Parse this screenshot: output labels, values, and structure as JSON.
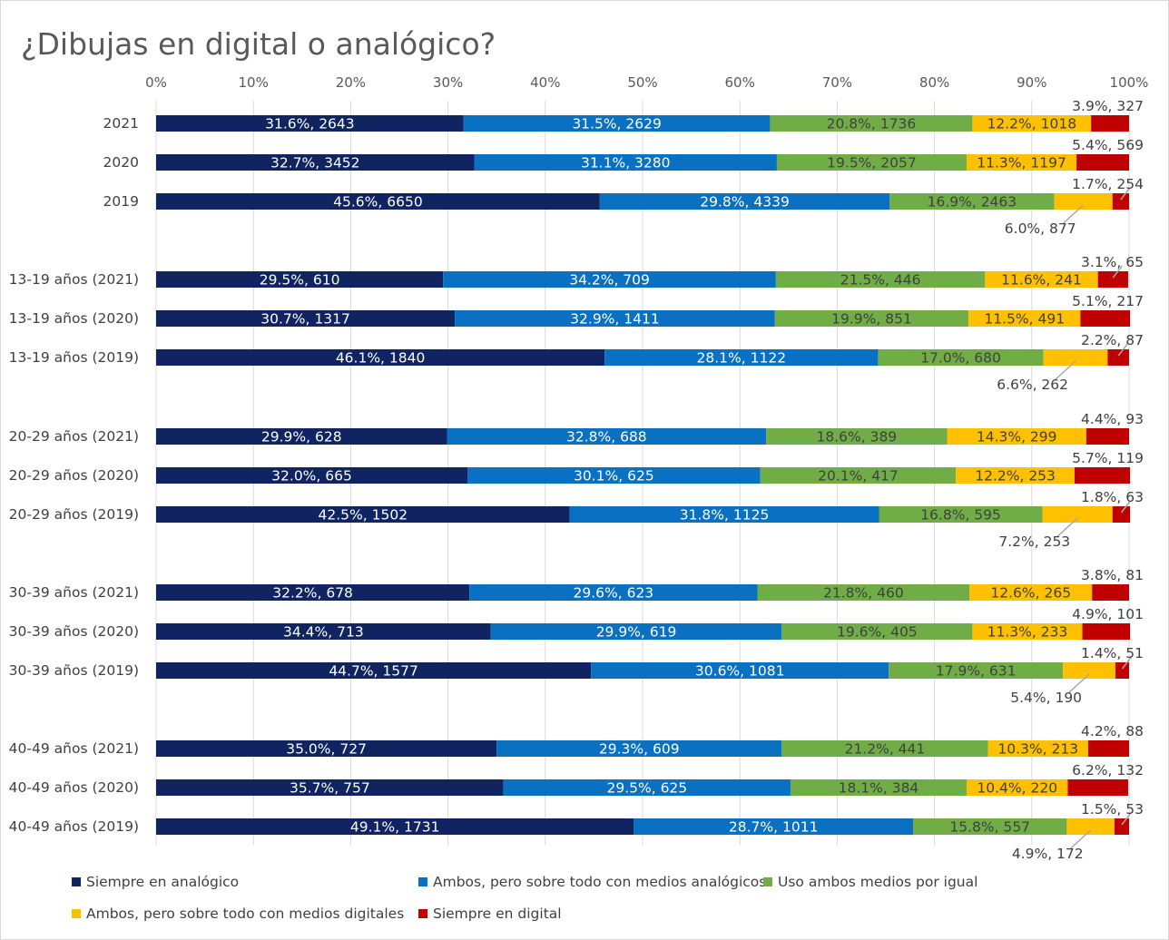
{
  "colors": {
    "Siempre en analógico": "#0f2461",
    "Ambos, pero sobre todo con medios analógicos": "#0a70c2",
    "Uso ambos medios por igual": "#71ad47",
    "Ambos, pero sobre todo con medios digitales": "#ffc000",
    "Siempre en digital": "#c00000"
  },
  "chart_data": {
    "type": "bar",
    "orientation": "horizontal",
    "stacked": "percent",
    "title": "¿Dibujas en digital o analógico?",
    "x_ticks": [
      "0%",
      "10%",
      "20%",
      "30%",
      "40%",
      "50%",
      "60%",
      "70%",
      "80%",
      "90%",
      "100%"
    ],
    "xlim": [
      0,
      100
    ],
    "grid": true,
    "legend_position": "bottom",
    "categories": [
      "2021",
      "2020",
      "2019",
      "13-19 años (2021)",
      "13-19 años (2020)",
      "13-19 años (2019)",
      "20-29 años (2021)",
      "20-29 años (2020)",
      "20-29 años (2019)",
      "30-39 años (2021)",
      "30-39 años (2020)",
      "30-39 años (2019)",
      "40-49 años (2021)",
      "40-49 años (2020)",
      "40-49 años (2019)"
    ],
    "series": [
      {
        "name": "Siempre en analógico",
        "values": [
          31.6,
          32.7,
          45.6,
          29.5,
          30.7,
          46.1,
          29.9,
          32.0,
          42.5,
          32.2,
          34.4,
          44.7,
          35.0,
          35.7,
          49.1
        ],
        "labels": [
          "31.6%, 2643",
          "32.7%, 3452",
          "45.6%, 6650",
          "29.5%, 610",
          "30.7%, 1317",
          "46.1%, 1840",
          "29.9%, 628",
          "32.0%, 665",
          "42.5%, 1502",
          "32.2%, 678",
          "34.4%, 713",
          "44.7%, 1577",
          "35.0%, 727",
          "35.7%, 757",
          "49.1%, 1731"
        ]
      },
      {
        "name": "Ambos, pero sobre todo con medios analógicos",
        "values": [
          31.5,
          31.1,
          29.8,
          34.2,
          32.9,
          28.1,
          32.8,
          30.1,
          31.8,
          29.6,
          29.9,
          30.6,
          29.3,
          29.5,
          28.7
        ],
        "labels": [
          "31.5%, 2629",
          "31.1%, 3280",
          "29.8%, 4339",
          "34.2%, 709",
          "32.9%, 1411",
          "28.1%, 1122",
          "32.8%, 688",
          "30.1%, 625",
          "31.8%, 1125",
          "29.6%, 623",
          "29.9%, 619",
          "30.6%, 1081",
          "29.3%, 609",
          "29.5%, 625",
          "28.7%, 1011"
        ]
      },
      {
        "name": "Uso ambos medios por igual",
        "values": [
          20.8,
          19.5,
          16.9,
          21.5,
          19.9,
          17.0,
          18.6,
          20.1,
          16.8,
          21.8,
          19.6,
          17.9,
          21.2,
          18.1,
          15.8
        ],
        "labels": [
          "20.8%, 1736",
          "19.5%, 2057",
          "16.9%, 2463",
          "21.5%, 446",
          "19.9%, 851",
          "17.0%, 680",
          "18.6%, 389",
          "20.1%, 417",
          "16.8%, 595",
          "21.8%, 460",
          "19.6%, 405",
          "17.9%, 631",
          "21.2%, 441",
          "18.1%, 384",
          "15.8%, 557"
        ]
      },
      {
        "name": "Ambos, pero sobre todo con medios digitales",
        "values": [
          12.2,
          11.3,
          6.0,
          11.6,
          11.5,
          6.6,
          14.3,
          12.2,
          7.2,
          12.6,
          11.3,
          5.4,
          10.3,
          10.4,
          4.9
        ],
        "labels": [
          "12.2%, 1018",
          "11.3%, 1197",
          "6.0%, 877",
          "11.6%, 241",
          "11.5%, 491",
          "6.6%, 262",
          "14.3%, 299",
          "12.2%, 253",
          "7.2%, 253",
          "12.6%, 265",
          "11.3%, 233",
          "5.4%, 190",
          "10.3%, 213",
          "10.4%, 220",
          "4.9%, 172"
        ]
      },
      {
        "name": "Siempre en digital",
        "values": [
          3.9,
          5.4,
          1.7,
          3.1,
          5.1,
          2.2,
          4.4,
          5.7,
          1.8,
          3.8,
          4.9,
          1.4,
          4.2,
          6.2,
          1.5
        ],
        "labels": [
          "3.9%, 327",
          "5.4%, 569",
          "1.7%, 254",
          "3.1%, 65",
          "5.1%, 217",
          "2.2%, 87",
          "4.4%, 93",
          "5.7%, 119",
          "1.8%, 63",
          "3.8%, 81",
          "4.9%, 101",
          "1.4%, 51",
          "4.2%, 88",
          "6.2%, 132",
          "1.5%, 53"
        ]
      }
    ],
    "legend": [
      "Siempre en analógico",
      "Ambos, pero sobre todo con medios analógicos",
      "Uso ambos medios por igual",
      "Ambos, pero sobre todo con medios digitales",
      "Siempre en digital"
    ]
  }
}
